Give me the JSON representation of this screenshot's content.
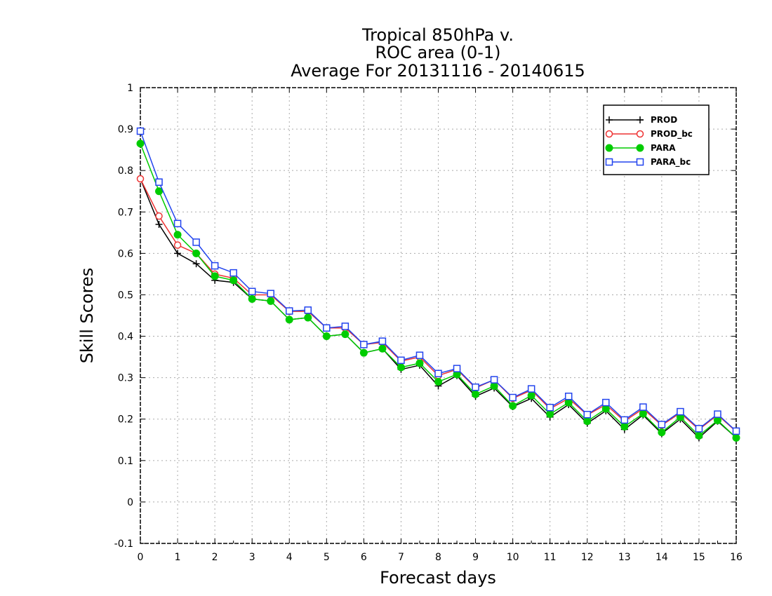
{
  "chart_data": {
    "type": "line",
    "title_lines": [
      "Tropical 850hPa v.",
      "ROC area (0-1)",
      "Average For 20131116 - 20140615"
    ],
    "xlabel": "Forecast days",
    "ylabel": "Skill Scores",
    "xlim": [
      0,
      16
    ],
    "ylim": [
      -0.1,
      1
    ],
    "x_ticks": [
      "0",
      "1",
      "2",
      "3",
      "4",
      "5",
      "6",
      "7",
      "8",
      "9",
      "10",
      "11",
      "12",
      "13",
      "14",
      "15",
      "16"
    ],
    "y_ticks": [
      "-0.1",
      "0",
      "0.1",
      "0.2",
      "0.3",
      "0.4",
      "0.5",
      "0.6",
      "0.7",
      "0.8",
      "0.9",
      "1"
    ],
    "grid": true,
    "legend_position": "top-right",
    "x": [
      0,
      0.5,
      1,
      1.5,
      2,
      2.5,
      3,
      3.5,
      4,
      4.5,
      5,
      5.5,
      6,
      6.5,
      7,
      7.5,
      8,
      8.5,
      9,
      9.5,
      10,
      10.5,
      11,
      11.5,
      12,
      12.5,
      13,
      13.5,
      14,
      14.5,
      15,
      15.5,
      16
    ],
    "series": [
      {
        "name": "PROD",
        "color": "#000000",
        "marker": "plus",
        "values": [
          0.78,
          0.67,
          0.6,
          0.575,
          0.535,
          0.53,
          0.49,
          0.485,
          0.44,
          0.445,
          0.4,
          0.405,
          0.36,
          0.37,
          0.32,
          0.33,
          0.28,
          0.305,
          0.255,
          0.275,
          0.23,
          0.25,
          0.205,
          0.235,
          0.19,
          0.22,
          0.175,
          0.21,
          0.165,
          0.2,
          0.155,
          0.195,
          0.155
        ]
      },
      {
        "name": "PROD_bc",
        "color": "#ee3333",
        "marker": "open-circle",
        "values": [
          0.78,
          0.69,
          0.62,
          0.6,
          0.55,
          0.54,
          0.5,
          0.5,
          0.46,
          0.46,
          0.42,
          0.42,
          0.38,
          0.385,
          0.34,
          0.35,
          0.305,
          0.32,
          0.275,
          0.295,
          0.25,
          0.27,
          0.225,
          0.25,
          0.21,
          0.235,
          0.195,
          0.225,
          0.185,
          0.215,
          0.175,
          0.21,
          0.17
        ]
      },
      {
        "name": "PARA",
        "color": "#00cc00",
        "marker": "filled-circle",
        "values": [
          0.865,
          0.75,
          0.645,
          0.6,
          0.545,
          0.535,
          0.49,
          0.485,
          0.44,
          0.445,
          0.4,
          0.405,
          0.36,
          0.37,
          0.325,
          0.335,
          0.29,
          0.308,
          0.26,
          0.28,
          0.232,
          0.257,
          0.212,
          0.24,
          0.195,
          0.225,
          0.182,
          0.213,
          0.168,
          0.205,
          0.16,
          0.197,
          0.155
        ]
      },
      {
        "name": "PARA_bc",
        "color": "#2244ee",
        "marker": "open-square",
        "values": [
          0.895,
          0.772,
          0.672,
          0.627,
          0.57,
          0.553,
          0.508,
          0.503,
          0.461,
          0.463,
          0.42,
          0.424,
          0.38,
          0.388,
          0.342,
          0.354,
          0.31,
          0.322,
          0.277,
          0.295,
          0.252,
          0.273,
          0.228,
          0.255,
          0.211,
          0.24,
          0.198,
          0.229,
          0.187,
          0.218,
          0.177,
          0.212,
          0.171
        ]
      }
    ]
  }
}
